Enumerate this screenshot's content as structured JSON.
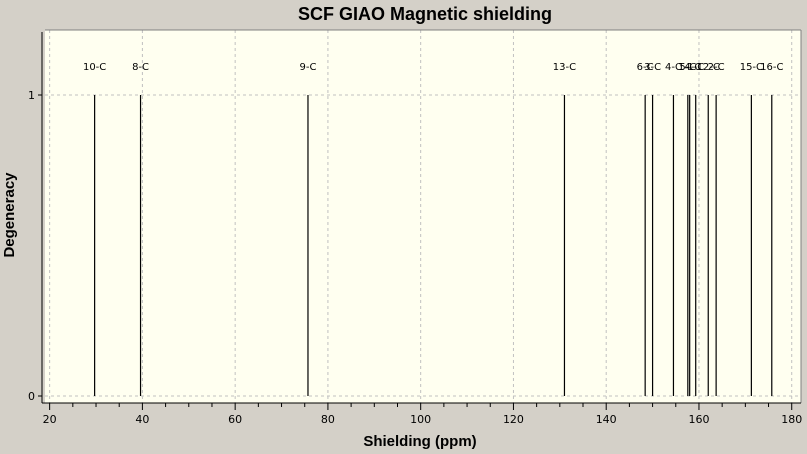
{
  "chart_data": {
    "type": "bar",
    "title": "SCF GIAO Magnetic shielding",
    "xlabel": "Shielding (ppm)",
    "ylabel": "Degeneracy",
    "xlim": [
      19,
      182
    ],
    "ylim": [
      0,
      1.2
    ],
    "x_ticks": [
      20,
      40,
      60,
      80,
      100,
      120,
      140,
      160,
      180
    ],
    "y_ticks": [
      0,
      1
    ],
    "grid": true,
    "colors": {
      "background": "#d4d0c8",
      "plot_area": "#fffff0",
      "grid": "#c0c0c0",
      "peak": "#000000"
    },
    "peaks": [
      {
        "label": "10-C",
        "x": 29.7,
        "y": 1
      },
      {
        "label": "8-C",
        "x": 39.6,
        "y": 1
      },
      {
        "label": "9-C",
        "x": 75.7,
        "y": 1
      },
      {
        "label": "13-C",
        "x": 131.0,
        "y": 1
      },
      {
        "label": "6-C",
        "x": 148.4,
        "y": 1
      },
      {
        "label": "3-C",
        "x": 150.0,
        "y": 1
      },
      {
        "label": "4-C",
        "x": 154.5,
        "y": 1
      },
      {
        "label": "5-C",
        "x": 157.6,
        "y": 1
      },
      {
        "label": "14-C",
        "x": 158.0,
        "y": 1
      },
      {
        "label": "1-C",
        "x": 159.3,
        "y": 1
      },
      {
        "label": "12-C",
        "x": 162.0,
        "y": 1
      },
      {
        "label": "2-C",
        "x": 163.7,
        "y": 1
      },
      {
        "label": "15-C",
        "x": 171.3,
        "y": 1
      },
      {
        "label": "16-C",
        "x": 175.7,
        "y": 1
      }
    ]
  }
}
